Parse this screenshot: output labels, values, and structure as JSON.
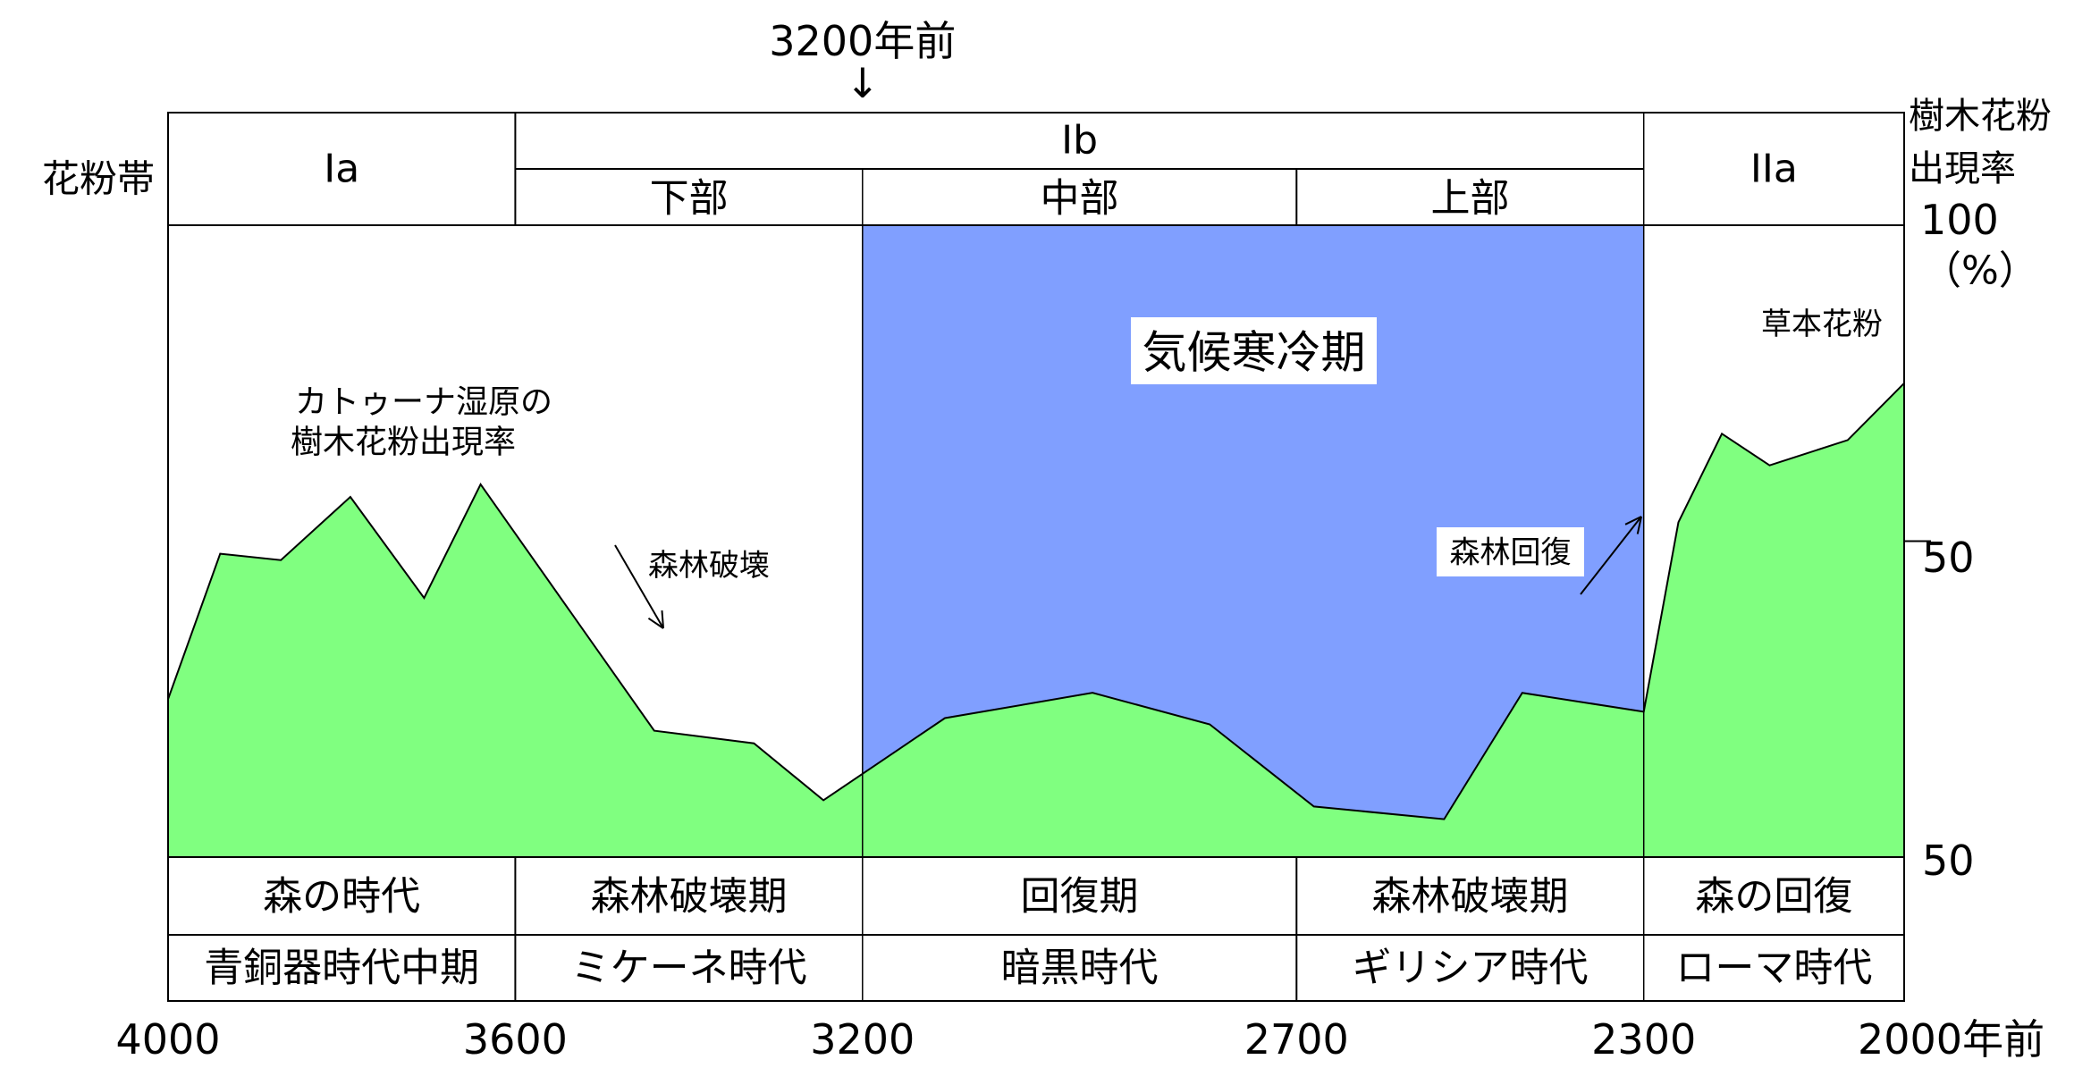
{
  "chart_data": {
    "type": "area",
    "x_axis_ticks": [
      "4000",
      "3600",
      "3200",
      "2700",
      "2300",
      "2000年前"
    ],
    "y_axis_ticks": [
      "100",
      "50",
      "50"
    ],
    "y_axis_unit": "（%）",
    "y_axis_title_lines": [
      "樹木花粉",
      "出現率"
    ],
    "y_min": 0,
    "y_max": 100,
    "top_marker": "3200年前",
    "top_marker_arrow": "↓",
    "series": [
      {
        "name": "カトゥーナ湿原の樹木花粉出現率",
        "color": "#80ff80",
        "x": [
          4000,
          3940,
          3870,
          3790,
          3705,
          3640,
          3440,
          3325,
          3245,
          3105,
          2935,
          2800,
          2680,
          2530,
          2440,
          2300,
          2260,
          2210,
          2155,
          2065,
          2000
        ],
        "y": [
          25,
          48,
          47,
          57,
          41,
          59,
          20,
          18,
          9,
          22,
          26,
          21,
          8,
          6,
          26,
          23,
          53,
          67,
          62,
          66,
          75
        ]
      }
    ],
    "annotations": {
      "series_label_line1": "カトゥーナ湿原の",
      "series_label_line2": "樹木花粉出現率",
      "forest_destruction": "森林破壊",
      "forest_recovery": "森林回復",
      "herb_pollen": "草本花粉",
      "cold_period": "気候寒冷期"
    },
    "cold_period_range": [
      3200,
      2300
    ],
    "cold_period_color": "#809fff",
    "pollen_zone": {
      "row_label": "花粉帯",
      "zones": [
        {
          "label": "Ia",
          "range": [
            4000,
            3600
          ]
        },
        {
          "label": "Ib",
          "range": [
            3600,
            2300
          ]
        },
        {
          "label": "IIa",
          "range": [
            2300,
            2000
          ]
        }
      ],
      "subzones": [
        {
          "label": "下部",
          "range": [
            3600,
            3200
          ]
        },
        {
          "label": "中部",
          "range": [
            3200,
            2700
          ]
        },
        {
          "label": "上部",
          "range": [
            2700,
            2300
          ]
        }
      ]
    },
    "periods_row1": [
      {
        "label": "森の時代",
        "range": [
          4000,
          3600
        ]
      },
      {
        "label": "森林破壊期",
        "range": [
          3600,
          3200
        ]
      },
      {
        "label": "回復期",
        "range": [
          3200,
          2700
        ]
      },
      {
        "label": "森林破壊期",
        "range": [
          2700,
          2300
        ]
      },
      {
        "label": "森の回復",
        "range": [
          2300,
          2000
        ]
      }
    ],
    "periods_row2": [
      {
        "label": "青銅器時代中期",
        "range": [
          4000,
          3600
        ]
      },
      {
        "label": "ミケーネ時代",
        "range": [
          3600,
          3200
        ]
      },
      {
        "label": "暗黒時代",
        "range": [
          3200,
          2700
        ]
      },
      {
        "label": "ギリシア時代",
        "range": [
          2700,
          2300
        ]
      },
      {
        "label": "ローマ時代",
        "range": [
          2300,
          2000
        ]
      }
    ]
  }
}
